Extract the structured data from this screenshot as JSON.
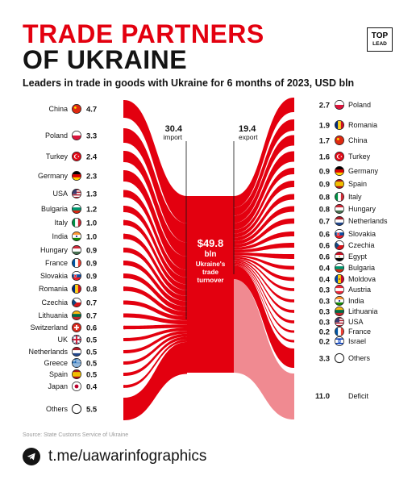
{
  "header": {
    "title_line1": "TRADE PARTNERS",
    "title_line2": "OF UKRAINE",
    "subtitle": "Leaders in trade in goods with Ukraine for 6 months of 2023, USD bln",
    "logo_top": "TOP",
    "logo_bottom": "LEAD"
  },
  "colors": {
    "primary": "#e3000f",
    "deficit": "#f08a91",
    "text": "#141414",
    "muted": "#9a9a9a"
  },
  "chart_data": {
    "type": "sankey",
    "unit": "USD bln",
    "import": {
      "label": "import",
      "total": "30.4",
      "partners": [
        {
          "country": "China",
          "value": "4.7",
          "flag": "china-flag"
        },
        {
          "country": "Poland",
          "value": "3.3",
          "flag": "poland-flag"
        },
        {
          "country": "Turkey",
          "value": "2.4",
          "flag": "turkey-flag"
        },
        {
          "country": "Germany",
          "value": "2.3",
          "flag": "germany-flag"
        },
        {
          "country": "USA",
          "value": "1.3",
          "flag": "usa-flag"
        },
        {
          "country": "Bulgaria",
          "value": "1.2",
          "flag": "bulgaria-flag"
        },
        {
          "country": "Italy",
          "value": "1.0",
          "flag": "italy-flag"
        },
        {
          "country": "India",
          "value": "1.0",
          "flag": "india-flag"
        },
        {
          "country": "Hungary",
          "value": "0.9",
          "flag": "hungary-flag"
        },
        {
          "country": "France",
          "value": "0.9",
          "flag": "france-flag"
        },
        {
          "country": "Slovakia",
          "value": "0.9",
          "flag": "slovakia-flag"
        },
        {
          "country": "Romania",
          "value": "0.8",
          "flag": "romania-flag"
        },
        {
          "country": "Czechia",
          "value": "0.7",
          "flag": "czechia-flag"
        },
        {
          "country": "Lithuania",
          "value": "0.7",
          "flag": "lithuania-flag"
        },
        {
          "country": "Switzerland",
          "value": "0.6",
          "flag": "switzerland-flag"
        },
        {
          "country": "UK",
          "value": "0.5",
          "flag": "uk-flag"
        },
        {
          "country": "Netherlands",
          "value": "0.5",
          "flag": "netherlands-flag"
        },
        {
          "country": "Greece",
          "value": "0.5",
          "flag": "greece-flag"
        },
        {
          "country": "Spain",
          "value": "0.5",
          "flag": "spain-flag"
        },
        {
          "country": "Japan",
          "value": "0.4",
          "flag": "japan-flag"
        },
        {
          "country": "Others",
          "value": "5.5",
          "flag": "others-circle"
        }
      ]
    },
    "export": {
      "label": "export",
      "total": "19.4",
      "partners": [
        {
          "country": "Poland",
          "value": "2.7",
          "flag": "poland-flag"
        },
        {
          "country": "Romania",
          "value": "1.9",
          "flag": "romania-flag"
        },
        {
          "country": "China",
          "value": "1.7",
          "flag": "china-flag"
        },
        {
          "country": "Turkey",
          "value": "1.6",
          "flag": "turkey-flag"
        },
        {
          "country": "Germany",
          "value": "0.9",
          "flag": "germany-flag"
        },
        {
          "country": "Spain",
          "value": "0.9",
          "flag": "spain-flag"
        },
        {
          "country": "Italy",
          "value": "0.8",
          "flag": "italy-flag"
        },
        {
          "country": "Hungary",
          "value": "0.8",
          "flag": "hungary-flag"
        },
        {
          "country": "Netherlands",
          "value": "0.7",
          "flag": "netherlands-flag"
        },
        {
          "country": "Slovakia",
          "value": "0.6",
          "flag": "slovakia-flag"
        },
        {
          "country": "Czechia",
          "value": "0.6",
          "flag": "czechia-flag"
        },
        {
          "country": "Egypt",
          "value": "0.6",
          "flag": "egypt-flag"
        },
        {
          "country": "Bulgaria",
          "value": "0.4",
          "flag": "bulgaria-flag"
        },
        {
          "country": "Moldova",
          "value": "0.4",
          "flag": "moldova-flag"
        },
        {
          "country": "Austria",
          "value": "0.3",
          "flag": "austria-flag"
        },
        {
          "country": "India",
          "value": "0.3",
          "flag": "india-flag"
        },
        {
          "country": "Lithuania",
          "value": "0.3",
          "flag": "lithuania-flag"
        },
        {
          "country": "USA",
          "value": "0.3",
          "flag": "usa-flag"
        },
        {
          "country": "France",
          "value": "0.2",
          "flag": "france-flag"
        },
        {
          "country": "Israel",
          "value": "0.2",
          "flag": "israel-flag"
        },
        {
          "country": "Others",
          "value": "3.3",
          "flag": "others-circle"
        }
      ],
      "deficit": {
        "label": "Deficit",
        "value": "11.0"
      }
    },
    "center": {
      "amount": "$49.8",
      "unit": "bln",
      "label": "Ukraine's trade turnover"
    }
  },
  "footer": {
    "source": "Source: State Customs Service of Ukraine",
    "telegram": "t.me/uawarinfographics",
    "telegram_icon": "telegram-icon"
  }
}
